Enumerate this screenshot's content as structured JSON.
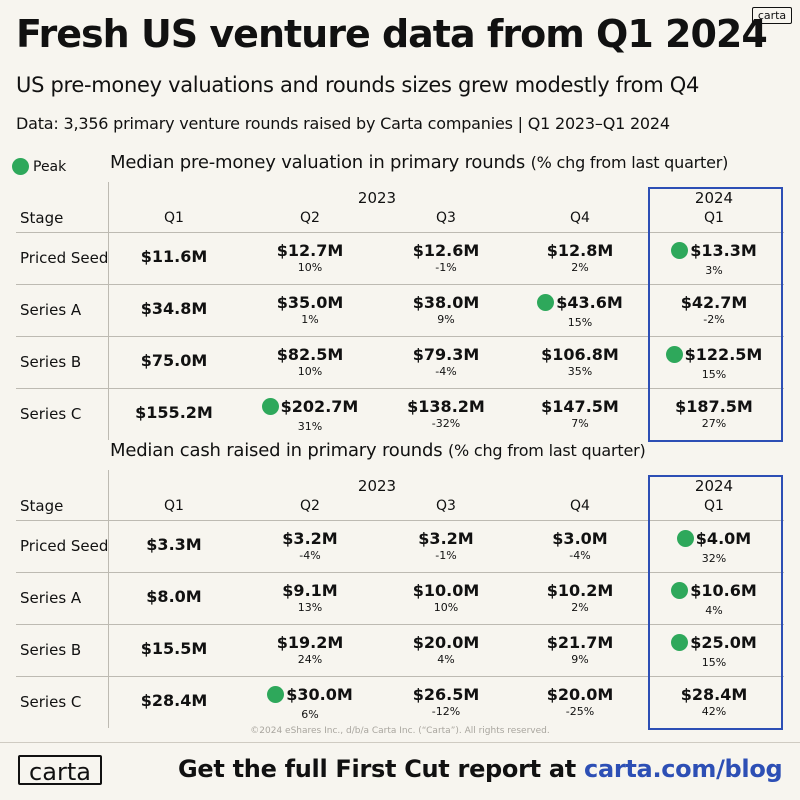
{
  "header": {
    "title": "Fresh US venture data from Q1 2024",
    "logo_small": "carta",
    "subtitle": "US pre-money valuations and rounds sizes grew modestly from Q4",
    "note": "Data: 3,356 primary venture rounds raised by Carta companies | Q1 2023–Q1 2024"
  },
  "legend": {
    "peak_label": "Peak"
  },
  "tables": [
    {
      "title": "Median pre-money valuation in primary rounds",
      "title_suffix": "(% chg from last quarter)",
      "stage_header": "Stage",
      "year_2023": "2023",
      "year_2024": "2024",
      "quarters": [
        "Q1",
        "Q2",
        "Q3",
        "Q4",
        "Q1"
      ],
      "rows": [
        {
          "stage": "Priced Seed",
          "cells": [
            {
              "value": "$11.6M",
              "pct": "",
              "peak": false
            },
            {
              "value": "$12.7M",
              "pct": "10%",
              "peak": false
            },
            {
              "value": "$12.6M",
              "pct": "-1%",
              "peak": false
            },
            {
              "value": "$12.8M",
              "pct": "2%",
              "peak": false
            },
            {
              "value": "$13.3M",
              "pct": "3%",
              "peak": true
            }
          ]
        },
        {
          "stage": "Series A",
          "cells": [
            {
              "value": "$34.8M",
              "pct": "",
              "peak": false
            },
            {
              "value": "$35.0M",
              "pct": "1%",
              "peak": false
            },
            {
              "value": "$38.0M",
              "pct": "9%",
              "peak": false
            },
            {
              "value": "$43.6M",
              "pct": "15%",
              "peak": true
            },
            {
              "value": "$42.7M",
              "pct": "-2%",
              "peak": false
            }
          ]
        },
        {
          "stage": "Series B",
          "cells": [
            {
              "value": "$75.0M",
              "pct": "",
              "peak": false
            },
            {
              "value": "$82.5M",
              "pct": "10%",
              "peak": false
            },
            {
              "value": "$79.3M",
              "pct": "-4%",
              "peak": false
            },
            {
              "value": "$106.8M",
              "pct": "35%",
              "peak": false
            },
            {
              "value": "$122.5M",
              "pct": "15%",
              "peak": true
            }
          ]
        },
        {
          "stage": "Series C",
          "cells": [
            {
              "value": "$155.2M",
              "pct": "",
              "peak": false
            },
            {
              "value": "$202.7M",
              "pct": "31%",
              "peak": true
            },
            {
              "value": "$138.2M",
              "pct": "-32%",
              "peak": false
            },
            {
              "value": "$147.5M",
              "pct": "7%",
              "peak": false
            },
            {
              "value": "$187.5M",
              "pct": "27%",
              "peak": false
            }
          ]
        }
      ]
    },
    {
      "title": "Median cash raised in primary rounds",
      "title_suffix": "(% chg from last quarter)",
      "stage_header": "Stage",
      "year_2023": "2023",
      "year_2024": "2024",
      "quarters": [
        "Q1",
        "Q2",
        "Q3",
        "Q4",
        "Q1"
      ],
      "rows": [
        {
          "stage": "Priced Seed",
          "cells": [
            {
              "value": "$3.3M",
              "pct": "",
              "peak": false
            },
            {
              "value": "$3.2M",
              "pct": "-4%",
              "peak": false
            },
            {
              "value": "$3.2M",
              "pct": "-1%",
              "peak": false
            },
            {
              "value": "$3.0M",
              "pct": "-4%",
              "peak": false
            },
            {
              "value": "$4.0M",
              "pct": "32%",
              "peak": true
            }
          ]
        },
        {
          "stage": "Series A",
          "cells": [
            {
              "value": "$8.0M",
              "pct": "",
              "peak": false
            },
            {
              "value": "$9.1M",
              "pct": "13%",
              "peak": false
            },
            {
              "value": "$10.0M",
              "pct": "10%",
              "peak": false
            },
            {
              "value": "$10.2M",
              "pct": "2%",
              "peak": false
            },
            {
              "value": "$10.6M",
              "pct": "4%",
              "peak": true
            }
          ]
        },
        {
          "stage": "Series B",
          "cells": [
            {
              "value": "$15.5M",
              "pct": "",
              "peak": false
            },
            {
              "value": "$19.2M",
              "pct": "24%",
              "peak": false
            },
            {
              "value": "$20.0M",
              "pct": "4%",
              "peak": false
            },
            {
              "value": "$21.7M",
              "pct": "9%",
              "peak": false
            },
            {
              "value": "$25.0M",
              "pct": "15%",
              "peak": true
            }
          ]
        },
        {
          "stage": "Series C",
          "cells": [
            {
              "value": "$28.4M",
              "pct": "",
              "peak": false
            },
            {
              "value": "$30.0M",
              "pct": "6%",
              "peak": true
            },
            {
              "value": "$26.5M",
              "pct": "-12%",
              "peak": false
            },
            {
              "value": "$20.0M",
              "pct": "-25%",
              "peak": false
            },
            {
              "value": "$28.4M",
              "pct": "42%",
              "peak": false
            }
          ]
        }
      ]
    }
  ],
  "footer": {
    "copyright": "©2024 eShares Inc., d/b/a Carta Inc. (“Carta”). All rights reserved.",
    "logo": "carta",
    "cta_text": "Get the full First Cut report at",
    "cta_link": "carta.com/blog"
  },
  "colors": {
    "peak": "#2ea85b",
    "highlight": "#2d4fb5",
    "background": "#f7f5ef"
  },
  "chart_data": [
    {
      "type": "table",
      "title": "Median pre-money valuation in primary rounds",
      "subtitle": "(% chg from last quarter)",
      "categories": [
        "2023 Q1",
        "2023 Q2",
        "2023 Q3",
        "2023 Q4",
        "2024 Q1"
      ],
      "unit": "$M",
      "series": [
        {
          "name": "Priced Seed",
          "values": [
            11.6,
            12.7,
            12.6,
            12.8,
            13.3
          ],
          "pct_change": [
            null,
            10,
            -1,
            2,
            3
          ],
          "peak_index": 4
        },
        {
          "name": "Series A",
          "values": [
            34.8,
            35.0,
            38.0,
            43.6,
            42.7
          ],
          "pct_change": [
            null,
            1,
            9,
            15,
            -2
          ],
          "peak_index": 3
        },
        {
          "name": "Series B",
          "values": [
            75.0,
            82.5,
            79.3,
            106.8,
            122.5
          ],
          "pct_change": [
            null,
            10,
            -4,
            35,
            15
          ],
          "peak_index": 4
        },
        {
          "name": "Series C",
          "values": [
            155.2,
            202.7,
            138.2,
            147.5,
            187.5
          ],
          "pct_change": [
            null,
            31,
            -32,
            7,
            27
          ],
          "peak_index": 1
        }
      ]
    },
    {
      "type": "table",
      "title": "Median cash raised in primary rounds",
      "subtitle": "(% chg from last quarter)",
      "categories": [
        "2023 Q1",
        "2023 Q2",
        "2023 Q3",
        "2023 Q4",
        "2024 Q1"
      ],
      "unit": "$M",
      "series": [
        {
          "name": "Priced Seed",
          "values": [
            3.3,
            3.2,
            3.2,
            3.0,
            4.0
          ],
          "pct_change": [
            null,
            -4,
            -1,
            -4,
            32
          ],
          "peak_index": 4
        },
        {
          "name": "Series A",
          "values": [
            8.0,
            9.1,
            10.0,
            10.2,
            10.6
          ],
          "pct_change": [
            null,
            13,
            10,
            2,
            4
          ],
          "peak_index": 4
        },
        {
          "name": "Series B",
          "values": [
            15.5,
            19.2,
            20.0,
            21.7,
            25.0
          ],
          "pct_change": [
            null,
            24,
            4,
            9,
            15
          ],
          "peak_index": 4
        },
        {
          "name": "Series C",
          "values": [
            28.4,
            30.0,
            26.5,
            20.0,
            28.4
          ],
          "pct_change": [
            null,
            6,
            -12,
            -25,
            42
          ],
          "peak_index": 1
        }
      ]
    }
  ]
}
